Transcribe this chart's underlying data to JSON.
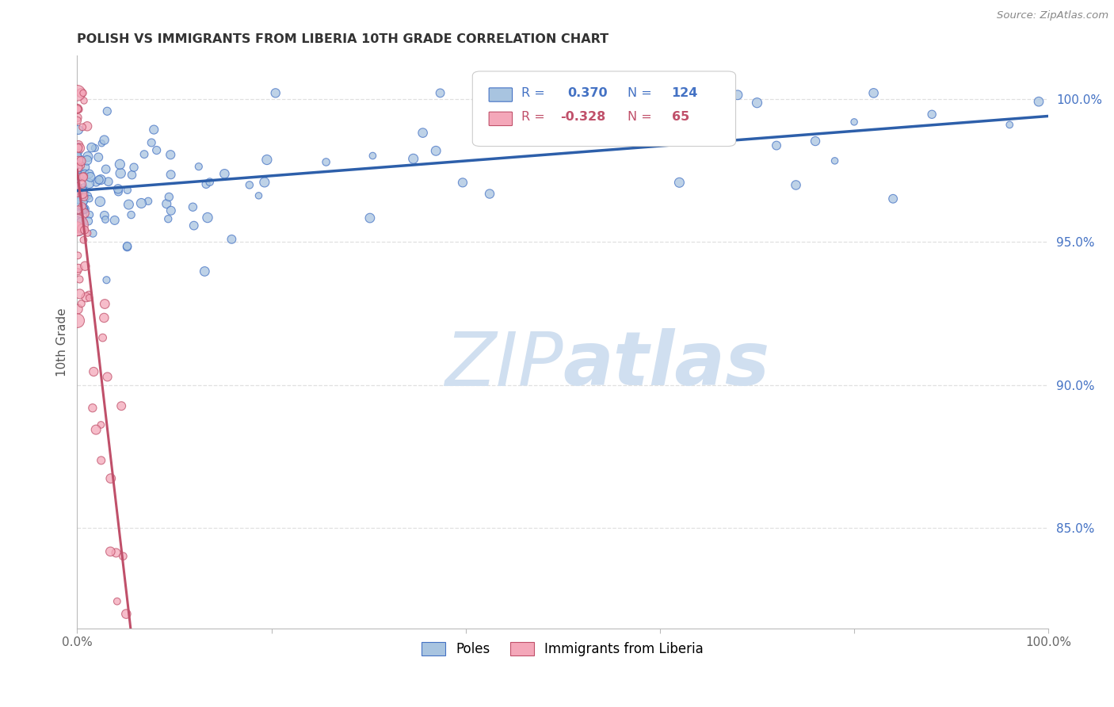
{
  "title": "POLISH VS IMMIGRANTS FROM LIBERIA 10TH GRADE CORRELATION CHART",
  "source": "Source: ZipAtlas.com",
  "ylabel": "10th Grade",
  "xlim": [
    0.0,
    1.0
  ],
  "ylim": [
    0.815,
    1.015
  ],
  "yticks": [
    0.85,
    0.9,
    0.95,
    1.0
  ],
  "ytick_labels": [
    "85.0%",
    "90.0%",
    "95.0%",
    "100.0%"
  ],
  "legend_poles": "Poles",
  "legend_liberia": "Immigrants from Liberia",
  "r_poles": 0.37,
  "n_poles": 124,
  "r_liberia": -0.328,
  "n_liberia": 65,
  "blue_fill": "#A8C4E0",
  "blue_edge": "#4472C4",
  "pink_fill": "#F4A7B9",
  "pink_edge": "#C0506A",
  "blue_line": "#2D5FAA",
  "pink_line": "#C0506A",
  "pink_dash": "#E8C0C8",
  "watermark_color": "#D0DFF0",
  "background_color": "#FFFFFF",
  "grid_color": "#DDDDDD",
  "title_color": "#333333",
  "source_color": "#888888",
  "ytick_color": "#4472C4",
  "xtick_color": "#666666"
}
